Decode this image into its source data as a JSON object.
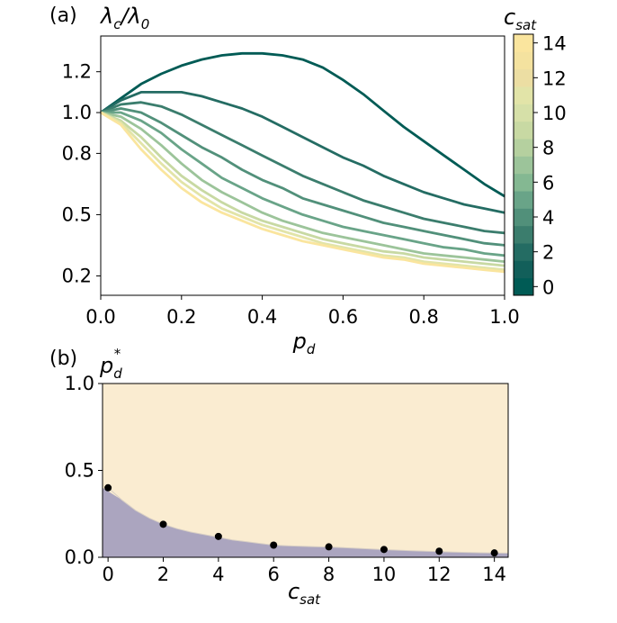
{
  "chart_data": [
    {
      "type": "line",
      "panel_label": "(a)",
      "ylabel": {
        "main": "λ",
        "sub1": "c",
        "slash": "/λ",
        "sub2": "0"
      },
      "xlabel": {
        "main": "p",
        "sub": "d"
      },
      "xlim": [
        0,
        1
      ],
      "ylim": [
        0.105,
        1.375
      ],
      "x_ticks": [
        "0.0",
        "0.2",
        "0.4",
        "0.6",
        "0.8",
        "1.0"
      ],
      "y_ticks": [
        "0.2",
        "0.5",
        "0.8",
        "1.0",
        "1.2"
      ],
      "colorbar": {
        "label": {
          "main": "c",
          "sub": "sat"
        },
        "ticks": [
          "0",
          "2",
          "4",
          "6",
          "8",
          "10",
          "12",
          "14"
        ],
        "range": [
          0,
          15
        ],
        "colors": [
          "#005b55",
          "#125f5a",
          "#246c63",
          "#3b7d6d",
          "#51907a",
          "#69a488",
          "#84b892",
          "#9cc49a",
          "#b5d09f",
          "#c8d9a3",
          "#d6e0a8",
          "#e2e4a8",
          "#ecdea3",
          "#f4e29f",
          "#fae59e"
        ]
      },
      "x": [
        0,
        0.05,
        0.1,
        0.15,
        0.2,
        0.25,
        0.3,
        0.35,
        0.4,
        0.45,
        0.5,
        0.55,
        0.6,
        0.65,
        0.7,
        0.75,
        0.8,
        0.85,
        0.9,
        0.95,
        1.0
      ],
      "series": [
        {
          "c_sat": 0,
          "color": "#005b55",
          "values": [
            1.0,
            1.07,
            1.14,
            1.19,
            1.23,
            1.26,
            1.28,
            1.29,
            1.29,
            1.28,
            1.26,
            1.22,
            1.16,
            1.09,
            1.01,
            0.93,
            0.86,
            0.79,
            0.72,
            0.65,
            0.59
          ]
        },
        {
          "c_sat": 2,
          "color": "#246c63",
          "values": [
            1.0,
            1.06,
            1.1,
            1.1,
            1.1,
            1.08,
            1.05,
            1.02,
            0.98,
            0.93,
            0.88,
            0.83,
            0.78,
            0.74,
            0.69,
            0.65,
            0.61,
            0.58,
            0.55,
            0.53,
            0.51
          ]
        },
        {
          "c_sat": 4,
          "color": "#3b7d6d",
          "values": [
            1.0,
            1.04,
            1.05,
            1.03,
            0.99,
            0.94,
            0.89,
            0.84,
            0.79,
            0.74,
            0.69,
            0.65,
            0.61,
            0.57,
            0.54,
            0.51,
            0.48,
            0.46,
            0.44,
            0.42,
            0.41
          ]
        },
        {
          "c_sat": 6,
          "color": "#51907a",
          "values": [
            1.0,
            1.02,
            1.0,
            0.95,
            0.89,
            0.83,
            0.78,
            0.72,
            0.67,
            0.63,
            0.58,
            0.55,
            0.52,
            0.49,
            0.46,
            0.44,
            0.42,
            0.4,
            0.38,
            0.36,
            0.35
          ]
        },
        {
          "c_sat": 8,
          "color": "#69a488",
          "values": [
            1.0,
            1.0,
            0.96,
            0.9,
            0.82,
            0.75,
            0.68,
            0.63,
            0.58,
            0.54,
            0.5,
            0.47,
            0.44,
            0.42,
            0.4,
            0.38,
            0.36,
            0.34,
            0.33,
            0.31,
            0.3
          ]
        },
        {
          "c_sat": 10,
          "color": "#9cc49a",
          "values": [
            1.0,
            0.98,
            0.92,
            0.84,
            0.75,
            0.67,
            0.61,
            0.56,
            0.51,
            0.47,
            0.44,
            0.41,
            0.39,
            0.37,
            0.35,
            0.33,
            0.31,
            0.3,
            0.29,
            0.28,
            0.27
          ]
        },
        {
          "c_sat": 12,
          "color": "#c8d9a3",
          "values": [
            1.0,
            0.96,
            0.88,
            0.78,
            0.69,
            0.62,
            0.56,
            0.51,
            0.47,
            0.44,
            0.41,
            0.38,
            0.36,
            0.34,
            0.32,
            0.31,
            0.29,
            0.28,
            0.27,
            0.26,
            0.25
          ]
        },
        {
          "c_sat": 13,
          "color": "#e2e4a8",
          "values": [
            1.0,
            0.95,
            0.85,
            0.75,
            0.66,
            0.59,
            0.53,
            0.49,
            0.45,
            0.42,
            0.39,
            0.36,
            0.34,
            0.32,
            0.3,
            0.29,
            0.27,
            0.26,
            0.25,
            0.24,
            0.23
          ]
        },
        {
          "c_sat": 14,
          "color": "#fae59e",
          "values": [
            1.0,
            0.94,
            0.82,
            0.72,
            0.63,
            0.56,
            0.51,
            0.47,
            0.43,
            0.4,
            0.37,
            0.35,
            0.33,
            0.31,
            0.29,
            0.28,
            0.26,
            0.25,
            0.24,
            0.23,
            0.22
          ]
        }
      ]
    },
    {
      "type": "scatter",
      "panel_label": "(b)",
      "ylabel": {
        "main": "p",
        "sub": "d",
        "sup": "*"
      },
      "xlabel": {
        "main": "c",
        "sub": "sat"
      },
      "xlim": [
        -0.2,
        14.5
      ],
      "ylim": [
        0,
        1
      ],
      "x_ticks": [
        "0",
        "2",
        "4",
        "6",
        "8",
        "10",
        "12",
        "14"
      ],
      "y_ticks": [
        "0.0",
        "0.5",
        "1.0"
      ],
      "colors": {
        "upper_region": "#faecd1",
        "lower_region": "#aba5bf",
        "points": "#000000"
      },
      "points": {
        "x": [
          0,
          2,
          4,
          6,
          8,
          10,
          12,
          14
        ],
        "y": [
          0.4,
          0.19,
          0.12,
          0.07,
          0.06,
          0.045,
          0.035,
          0.025
        ]
      },
      "boundary": {
        "x": [
          0,
          0.5,
          1,
          1.5,
          2,
          2.5,
          3,
          3.5,
          4,
          4.5,
          5,
          5.5,
          6,
          6.5,
          7,
          7.5,
          8,
          8.5,
          9,
          9.5,
          10,
          10.5,
          11,
          11.5,
          12,
          12.5,
          13,
          13.5,
          14,
          14.5
        ],
        "y": [
          0.4,
          0.33,
          0.27,
          0.225,
          0.19,
          0.165,
          0.145,
          0.13,
          0.115,
          0.1,
          0.09,
          0.08,
          0.07,
          0.066,
          0.063,
          0.061,
          0.059,
          0.056,
          0.052,
          0.048,
          0.044,
          0.041,
          0.038,
          0.035,
          0.032,
          0.03,
          0.028,
          0.026,
          0.025,
          0.024
        ]
      }
    }
  ]
}
